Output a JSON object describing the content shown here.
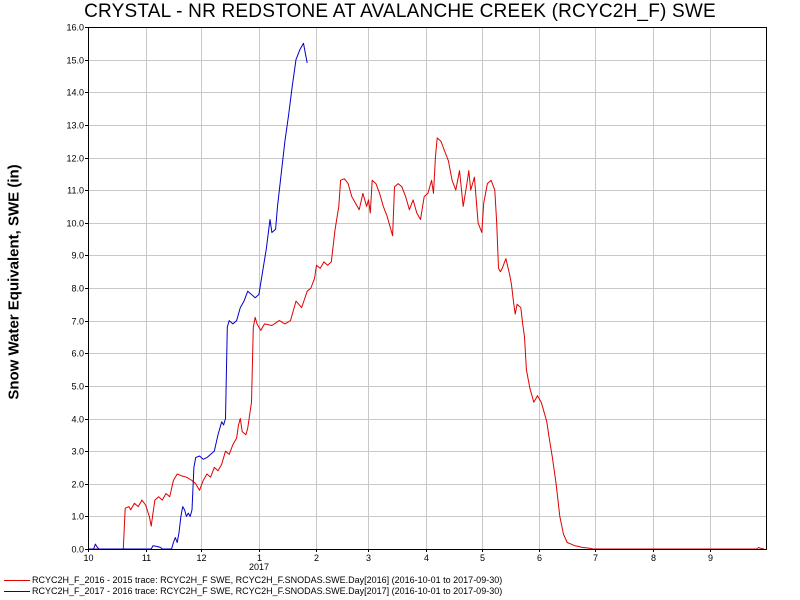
{
  "chart_data": {
    "type": "line",
    "title": "CRYSTAL - NR REDSTONE  AT AVALANCHE CREEK (RCYC2H_F) SWE",
    "ylabel": "Snow Water Equivalent, SWE (in)",
    "xlabel": "",
    "ylim": [
      0,
      16
    ],
    "yticks": [
      "0.0",
      "1.0",
      "2.0",
      "3.0",
      "4.0",
      "5.0",
      "6.0",
      "7.0",
      "8.0",
      "9.0",
      "10.0",
      "11.0",
      "12.0",
      "13.0",
      "14.0",
      "15.0",
      "16.0"
    ],
    "xlim": [
      "2016-10-01",
      "2017-09-30"
    ],
    "xticks": [
      {
        "date": "2016-10-01",
        "label": "10"
      },
      {
        "date": "2016-11-01",
        "label": "11"
      },
      {
        "date": "2016-12-01",
        "label": "12"
      },
      {
        "date": "2017-01-01",
        "label": "1"
      },
      {
        "date": "2017-02-01",
        "label": "2"
      },
      {
        "date": "2017-03-01",
        "label": "3"
      },
      {
        "date": "2017-04-01",
        "label": "4"
      },
      {
        "date": "2017-05-01",
        "label": "5"
      },
      {
        "date": "2017-06-01",
        "label": "6"
      },
      {
        "date": "2017-07-01",
        "label": "7"
      },
      {
        "date": "2017-08-01",
        "label": "8"
      },
      {
        "date": "2017-09-01",
        "label": "9"
      }
    ],
    "year_label": {
      "date": "2017-01-01",
      "label": "2017"
    },
    "grid": true,
    "legend_position": "bottom",
    "series": [
      {
        "name": "RCYC2H_F_2016 - 2015 trace: RCYC2H_F SWE, RCYC2H_F.SNODAS.SWE.Day[2016] (2016-10-01 to 2017-09-30)",
        "color": "#e00000",
        "points": [
          [
            "2016-10-01",
            0
          ],
          [
            "2016-10-20",
            0
          ],
          [
            "2016-10-21",
            1.25
          ],
          [
            "2016-10-23",
            1.3
          ],
          [
            "2016-10-24",
            1.2
          ],
          [
            "2016-10-26",
            1.4
          ],
          [
            "2016-10-28",
            1.3
          ],
          [
            "2016-10-30",
            1.5
          ],
          [
            "2016-11-01",
            1.35
          ],
          [
            "2016-11-03",
            1.0
          ],
          [
            "2016-11-04",
            0.7
          ],
          [
            "2016-11-05",
            1.1
          ],
          [
            "2016-11-06",
            1.5
          ],
          [
            "2016-11-08",
            1.6
          ],
          [
            "2016-11-10",
            1.5
          ],
          [
            "2016-11-12",
            1.7
          ],
          [
            "2016-11-14",
            1.6
          ],
          [
            "2016-11-16",
            2.1
          ],
          [
            "2016-11-18",
            2.3
          ],
          [
            "2016-11-20",
            2.25
          ],
          [
            "2016-11-23",
            2.2
          ],
          [
            "2016-11-26",
            2.1
          ],
          [
            "2016-11-28",
            2.0
          ],
          [
            "2016-11-30",
            1.8
          ],
          [
            "2016-12-02",
            2.1
          ],
          [
            "2016-12-04",
            2.3
          ],
          [
            "2016-12-06",
            2.2
          ],
          [
            "2016-12-08",
            2.5
          ],
          [
            "2016-12-10",
            2.4
          ],
          [
            "2016-12-12",
            2.6
          ],
          [
            "2016-12-14",
            3.0
          ],
          [
            "2016-12-16",
            2.9
          ],
          [
            "2016-12-18",
            3.2
          ],
          [
            "2016-12-20",
            3.4
          ],
          [
            "2016-12-21",
            3.8
          ],
          [
            "2016-12-22",
            4.0
          ],
          [
            "2016-12-23",
            3.6
          ],
          [
            "2016-12-25",
            3.5
          ],
          [
            "2016-12-26",
            3.7
          ],
          [
            "2016-12-28",
            4.5
          ],
          [
            "2016-12-29",
            6.8
          ],
          [
            "2016-12-30",
            7.1
          ],
          [
            "2016-12-31",
            6.9
          ],
          [
            "2017-01-02",
            6.7
          ],
          [
            "2017-01-04",
            6.9
          ],
          [
            "2017-01-08",
            6.85
          ],
          [
            "2017-01-12",
            7.0
          ],
          [
            "2017-01-15",
            6.9
          ],
          [
            "2017-01-18",
            7.0
          ],
          [
            "2017-01-21",
            7.6
          ],
          [
            "2017-01-24",
            7.4
          ],
          [
            "2017-01-27",
            7.9
          ],
          [
            "2017-01-29",
            8.0
          ],
          [
            "2017-01-31",
            8.3
          ],
          [
            "2017-02-01",
            8.7
          ],
          [
            "2017-02-03",
            8.6
          ],
          [
            "2017-02-05",
            8.8
          ],
          [
            "2017-02-07",
            8.7
          ],
          [
            "2017-02-09",
            8.8
          ],
          [
            "2017-02-11",
            9.8
          ],
          [
            "2017-02-13",
            10.5
          ],
          [
            "2017-02-14",
            11.3
          ],
          [
            "2017-02-16",
            11.35
          ],
          [
            "2017-02-18",
            11.2
          ],
          [
            "2017-02-20",
            10.8
          ],
          [
            "2017-02-22",
            10.6
          ],
          [
            "2017-02-24",
            10.4
          ],
          [
            "2017-02-26",
            10.9
          ],
          [
            "2017-02-28",
            10.5
          ],
          [
            "2017-03-01",
            10.7
          ],
          [
            "2017-03-02",
            10.3
          ],
          [
            "2017-03-03",
            11.3
          ],
          [
            "2017-03-05",
            11.2
          ],
          [
            "2017-03-07",
            10.9
          ],
          [
            "2017-03-09",
            10.5
          ],
          [
            "2017-03-11",
            10.2
          ],
          [
            "2017-03-13",
            9.8
          ],
          [
            "2017-03-14",
            9.6
          ],
          [
            "2017-03-15",
            11.1
          ],
          [
            "2017-03-17",
            11.2
          ],
          [
            "2017-03-19",
            11.1
          ],
          [
            "2017-03-21",
            10.8
          ],
          [
            "2017-03-23",
            10.4
          ],
          [
            "2017-03-25",
            10.7
          ],
          [
            "2017-03-27",
            10.3
          ],
          [
            "2017-03-29",
            10.1
          ],
          [
            "2017-03-31",
            10.8
          ],
          [
            "2017-04-02",
            10.9
          ],
          [
            "2017-04-04",
            11.3
          ],
          [
            "2017-04-05",
            10.9
          ],
          [
            "2017-04-06",
            12.0
          ],
          [
            "2017-04-07",
            12.6
          ],
          [
            "2017-04-09",
            12.5
          ],
          [
            "2017-04-11",
            12.2
          ],
          [
            "2017-04-13",
            11.9
          ],
          [
            "2017-04-15",
            11.3
          ],
          [
            "2017-04-17",
            11.0
          ],
          [
            "2017-04-19",
            11.6
          ],
          [
            "2017-04-21",
            10.5
          ],
          [
            "2017-04-23",
            11.2
          ],
          [
            "2017-04-24",
            11.6
          ],
          [
            "2017-04-25",
            11.0
          ],
          [
            "2017-04-27",
            11.4
          ],
          [
            "2017-04-29",
            10.0
          ],
          [
            "2017-05-01",
            9.7
          ],
          [
            "2017-05-02",
            10.6
          ],
          [
            "2017-05-04",
            11.2
          ],
          [
            "2017-05-06",
            11.3
          ],
          [
            "2017-05-08",
            11.0
          ],
          [
            "2017-05-09",
            10.0
          ],
          [
            "2017-05-10",
            8.6
          ],
          [
            "2017-05-11",
            8.5
          ],
          [
            "2017-05-12",
            8.6
          ],
          [
            "2017-05-14",
            8.9
          ],
          [
            "2017-05-16",
            8.4
          ],
          [
            "2017-05-17",
            8.1
          ],
          [
            "2017-05-18",
            7.6
          ],
          [
            "2017-05-19",
            7.2
          ],
          [
            "2017-05-20",
            7.5
          ],
          [
            "2017-05-22",
            7.4
          ],
          [
            "2017-05-23",
            6.9
          ],
          [
            "2017-05-24",
            6.5
          ],
          [
            "2017-05-25",
            5.5
          ],
          [
            "2017-05-26",
            5.2
          ],
          [
            "2017-05-27",
            4.9
          ],
          [
            "2017-05-28",
            4.7
          ],
          [
            "2017-05-29",
            4.5
          ],
          [
            "2017-05-31",
            4.7
          ],
          [
            "2017-06-02",
            4.5
          ],
          [
            "2017-06-03",
            4.3
          ],
          [
            "2017-06-05",
            3.9
          ],
          [
            "2017-06-06",
            3.5
          ],
          [
            "2017-06-08",
            2.8
          ],
          [
            "2017-06-10",
            2.0
          ],
          [
            "2017-06-12",
            1.0
          ],
          [
            "2017-06-14",
            0.45
          ],
          [
            "2017-06-16",
            0.2
          ],
          [
            "2017-06-18",
            0.15
          ],
          [
            "2017-06-20",
            0.1
          ],
          [
            "2017-06-22",
            0.08
          ],
          [
            "2017-06-24",
            0.05
          ],
          [
            "2017-06-26",
            0.04
          ],
          [
            "2017-06-28",
            0.02
          ],
          [
            "2017-06-30",
            0
          ],
          [
            "2017-09-26",
            0
          ],
          [
            "2017-09-27",
            0.05
          ],
          [
            "2017-09-28",
            0.02
          ],
          [
            "2017-09-30",
            0
          ]
        ]
      },
      {
        "name": "RCYC2H_F_2017 - 2016 trace: RCYC2H_F SWE, RCYC2H_F.SNODAS.SWE.Day[2017] (2016-10-01 to 2017-09-30)",
        "color": "#0000cc",
        "points": [
          [
            "2016-10-01",
            0
          ],
          [
            "2016-10-04",
            0
          ],
          [
            "2016-10-05",
            0.15
          ],
          [
            "2016-10-06",
            0.05
          ],
          [
            "2016-10-07",
            0
          ],
          [
            "2016-11-04",
            0
          ],
          [
            "2016-11-05",
            0.1
          ],
          [
            "2016-11-07",
            0.08
          ],
          [
            "2016-11-09",
            0.05
          ],
          [
            "2016-11-10",
            0
          ],
          [
            "2016-11-15",
            0
          ],
          [
            "2016-11-16",
            0.2
          ],
          [
            "2016-11-17",
            0.35
          ],
          [
            "2016-11-18",
            0.2
          ],
          [
            "2016-11-19",
            0.5
          ],
          [
            "2016-11-20",
            1.0
          ],
          [
            "2016-11-21",
            1.3
          ],
          [
            "2016-11-22",
            1.2
          ],
          [
            "2016-11-23",
            1.0
          ],
          [
            "2016-11-24",
            1.1
          ],
          [
            "2016-11-25",
            1.0
          ],
          [
            "2016-11-26",
            1.2
          ],
          [
            "2016-11-27",
            2.5
          ],
          [
            "2016-11-28",
            2.8
          ],
          [
            "2016-11-30",
            2.85
          ],
          [
            "2016-12-02",
            2.75
          ],
          [
            "2016-12-04",
            2.8
          ],
          [
            "2016-12-06",
            2.9
          ],
          [
            "2016-12-08",
            3.0
          ],
          [
            "2016-12-10",
            3.5
          ],
          [
            "2016-12-12",
            3.9
          ],
          [
            "2016-12-13",
            3.8
          ],
          [
            "2016-12-14",
            4.0
          ],
          [
            "2016-12-15",
            6.8
          ],
          [
            "2016-12-16",
            7.0
          ],
          [
            "2016-12-18",
            6.9
          ],
          [
            "2016-12-20",
            7.0
          ],
          [
            "2016-12-22",
            7.4
          ],
          [
            "2016-12-24",
            7.6
          ],
          [
            "2016-12-26",
            7.9
          ],
          [
            "2016-12-28",
            7.8
          ],
          [
            "2016-12-30",
            7.7
          ],
          [
            "2017-01-01",
            7.8
          ],
          [
            "2017-01-03",
            8.5
          ],
          [
            "2017-01-05",
            9.2
          ],
          [
            "2017-01-07",
            10.1
          ],
          [
            "2017-01-08",
            9.7
          ],
          [
            "2017-01-10",
            9.8
          ],
          [
            "2017-01-11",
            10.5
          ],
          [
            "2017-01-13",
            11.5
          ],
          [
            "2017-01-15",
            12.5
          ],
          [
            "2017-01-17",
            13.3
          ],
          [
            "2017-01-19",
            14.2
          ],
          [
            "2017-01-21",
            15.0
          ],
          [
            "2017-01-23",
            15.3
          ],
          [
            "2017-01-25",
            15.5
          ],
          [
            "2017-01-26",
            15.2
          ],
          [
            "2017-01-27",
            14.9
          ]
        ]
      }
    ]
  }
}
